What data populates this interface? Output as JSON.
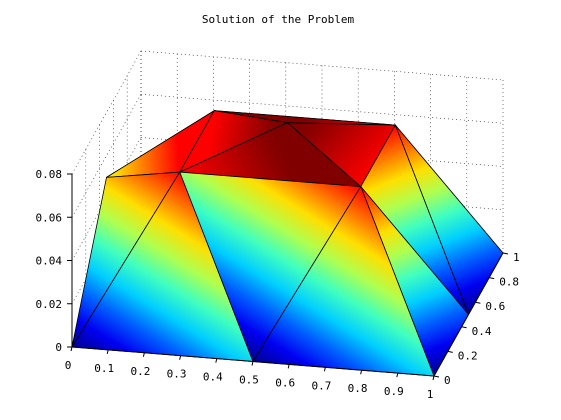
{
  "chart_data": {
    "type": "surface",
    "title": "Solution of the Problem",
    "xlabel": "",
    "ylabel": "",
    "zlabel": "",
    "xlim": [
      0,
      1
    ],
    "ylim": [
      0,
      1
    ],
    "zlim": [
      0,
      0.08
    ],
    "x_ticks": [
      "0",
      "0.1",
      "0.2",
      "0.3",
      "0.4",
      "0.5",
      "0.6",
      "0.7",
      "0.8",
      "0.9",
      "1"
    ],
    "y_ticks": [
      "0",
      "0.2",
      "0.4",
      "0.6",
      "0.8",
      "1"
    ],
    "z_ticks": [
      "0",
      "0.02",
      "0.04",
      "0.06",
      "0.08"
    ],
    "grid": true,
    "colormap": "jet",
    "colormap_stops": [
      "#00008f",
      "#0000ff",
      "#00ffff",
      "#ffff00",
      "#ff0000",
      "#800000"
    ],
    "nodes": [
      {
        "x": 0,
        "y": 0,
        "z": 0
      },
      {
        "x": 0.5,
        "y": 0,
        "z": 0
      },
      {
        "x": 1,
        "y": 0,
        "z": 0
      },
      {
        "x": 1,
        "y": 0.5,
        "z": 0
      },
      {
        "x": 1,
        "y": 1,
        "z": 0
      },
      {
        "x": 0.5,
        "y": 1,
        "z": 0.05
      },
      {
        "x": 0,
        "y": 1,
        "z": 0
      },
      {
        "x": 0,
        "y": 0.5,
        "z": 0.05
      },
      {
        "x": 0.25,
        "y": 0.25,
        "z": 0.07
      },
      {
        "x": 0.75,
        "y": 0.25,
        "z": 0.07
      },
      {
        "x": 0.75,
        "y": 0.75,
        "z": 0.07
      },
      {
        "x": 0.25,
        "y": 0.75,
        "z": 0.07
      },
      {
        "x": 0.5,
        "y": 0.5,
        "z": 0.082
      }
    ],
    "triangles": [
      [
        0,
        1,
        8
      ],
      [
        1,
        9,
        8
      ],
      [
        1,
        2,
        9
      ],
      [
        2,
        3,
        9
      ],
      [
        3,
        4,
        10
      ],
      [
        3,
        10,
        9
      ],
      [
        4,
        5,
        10
      ],
      [
        5,
        11,
        10
      ],
      [
        5,
        6,
        11
      ],
      [
        6,
        7,
        11
      ],
      [
        7,
        0,
        8
      ],
      [
        7,
        8,
        11
      ],
      [
        8,
        9,
        12
      ],
      [
        9,
        10,
        12
      ],
      [
        10,
        11,
        12
      ],
      [
        11,
        8,
        12
      ]
    ]
  }
}
